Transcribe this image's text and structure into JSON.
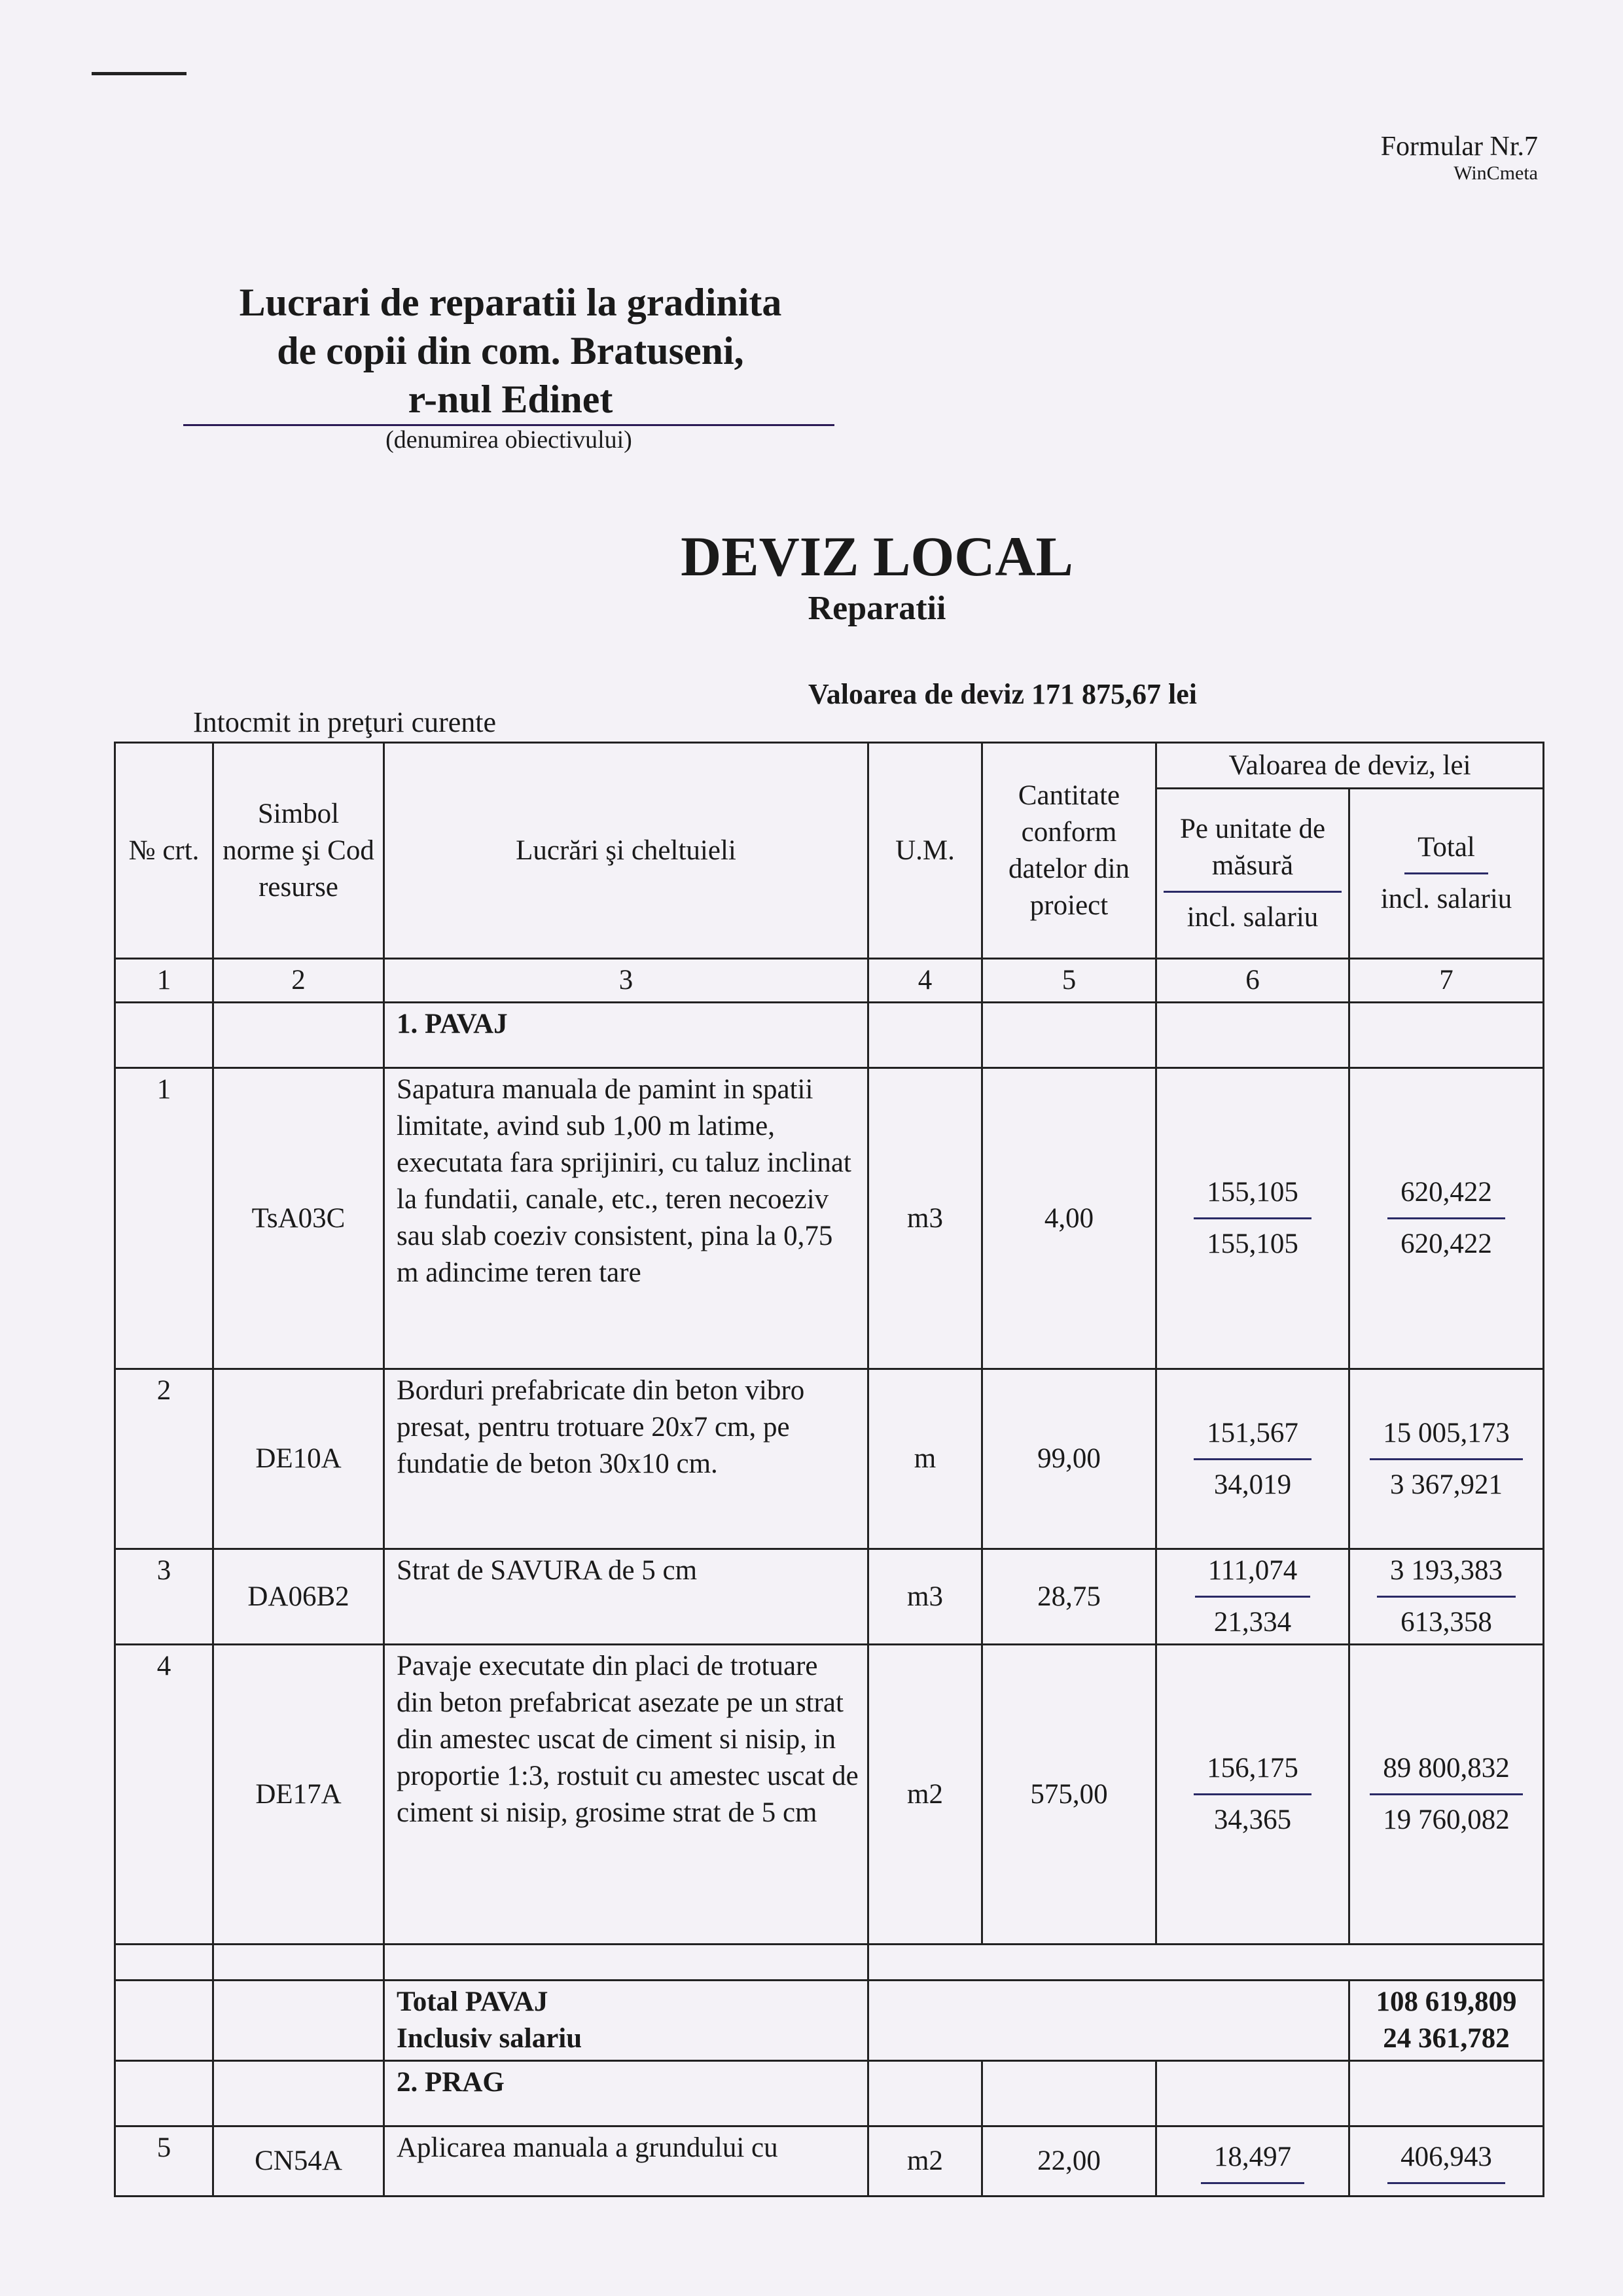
{
  "header": {
    "formular": "Formular Nr.7",
    "software": "WinCmeta"
  },
  "object": {
    "lines": [
      "Lucrari de reparatii la gradinita",
      "de copii din com. Bratuseni,",
      "r-nul Edinet"
    ],
    "caption": "(denumirea obiectivului)"
  },
  "title": "DEVIZ LOCAL",
  "subtitle": "Reparatii",
  "valoare": "Valoarea de deviz  171 875,67 lei",
  "intocmit": "Intocmit in preţuri  curente",
  "table": {
    "headers": {
      "nr": "№ crt.",
      "simbol": "Simbol norme şi Cod resurse",
      "lucrari": "Lucrări şi cheltuieli",
      "um": "U.M.",
      "cantitate": "Cantitate conform datelor din proiect",
      "valoare": "Valoarea de deviz, lei",
      "unit": "Pe unitate de măsură",
      "unit_sub": "incl. salariu",
      "total": "Total",
      "total_sub": "incl. salariu"
    },
    "col_numbers": [
      "1",
      "2",
      "3",
      "4",
      "5",
      "6",
      "7"
    ],
    "section1": "1. PAVAJ",
    "rows": [
      {
        "nr": "1",
        "code": "TsA03C",
        "desc": "Sapatura manuala de pamint in spatii limitate, avind sub 1,00 m latime, executata fara sprijiniri, cu taluz inclinat la fundatii, canale, etc., teren necoeziv sau slab coeziv consistent, pina la 0,75 m adincime  teren tare",
        "um": "m3",
        "qty": "4,00",
        "unit": "155,105",
        "unit_sal": "155,105",
        "total": "620,422",
        "total_sal": "620,422"
      },
      {
        "nr": "2",
        "code": "DE10A",
        "desc": "Borduri prefabricate din beton vibro presat, pentru trotuare 20x7 cm, pe fundatie de beton 30x10 cm.",
        "um": "m",
        "qty": "99,00",
        "unit": "151,567",
        "unit_sal": "34,019",
        "total": "15 005,173",
        "total_sal": "3 367,921"
      },
      {
        "nr": "3",
        "code": "DA06B2",
        "desc": "Strat de SAVURA de 5 cm",
        "um": "m3",
        "qty": "28,75",
        "unit": "111,074",
        "unit_sal": "21,334",
        "total": "3 193,383",
        "total_sal": "613,358"
      },
      {
        "nr": "4",
        "code": "DE17A",
        "desc": "Pavaje executate din placi de trotuare din beton prefabricat asezate pe un strat din amestec uscat de ciment si nisip, in proportie 1:3, rostuit cu amestec uscat de ciment si nisip, grosime strat de 5 cm",
        "um": "m2",
        "qty": "575,00",
        "unit": "156,175",
        "unit_sal": "34,365",
        "total": "89 800,832",
        "total_sal": "19 760,082"
      }
    ],
    "total1": {
      "label": "Total PAVAJ",
      "label_sal": "Inclusiv salariu",
      "value": "108 619,809",
      "value_sal": "24 361,782"
    },
    "section2": "2. PRAG",
    "row5": {
      "nr": "5",
      "code": "CN54A",
      "desc": "Aplicarea manuala a grundului cu",
      "um": "m2",
      "qty": "22,00",
      "unit": "18,497",
      "total": "406,943"
    }
  }
}
